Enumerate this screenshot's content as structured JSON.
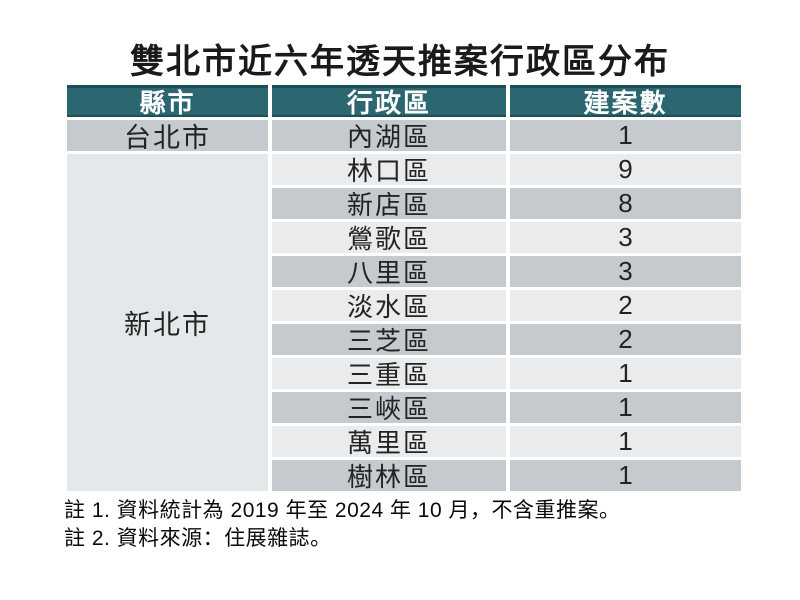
{
  "chart_data": {
    "type": "table",
    "title": "雙北市近六年透天推案行政區分布",
    "columns": [
      "縣市",
      "行政區",
      "建案數"
    ],
    "rows": [
      [
        "台北市",
        "內湖區",
        1
      ],
      [
        "新北市",
        "林口區",
        9
      ],
      [
        "新北市",
        "新店區",
        8
      ],
      [
        "新北市",
        "鶯歌區",
        3
      ],
      [
        "新北市",
        "八里區",
        3
      ],
      [
        "新北市",
        "淡水區",
        2
      ],
      [
        "新北市",
        "三芝區",
        2
      ],
      [
        "新北市",
        "三重區",
        1
      ],
      [
        "新北市",
        "三峽區",
        1
      ],
      [
        "新北市",
        "萬里區",
        1
      ],
      [
        "新北市",
        "樹林區",
        1
      ]
    ],
    "layout": {
      "city_column_merged": true,
      "taipei_row_span": 1,
      "new_taipei_row_span": 10,
      "grid": "alternating-row-shading"
    }
  },
  "notes": [
    "註 1. 資料統計為 2019 年至 2024 年 10 月，不含重推案。",
    "註 2. 資料來源：住展雜誌。"
  ],
  "colors": {
    "header_bg": "#2b6671",
    "header_edge": "#1d4f58",
    "header_text": "#ffffff",
    "row_dark": "#c4cace",
    "row_light": "#e9ebed",
    "merged_city_cell": "#e5e8ea",
    "body_text": "#232321",
    "background": "#ffffff"
  }
}
